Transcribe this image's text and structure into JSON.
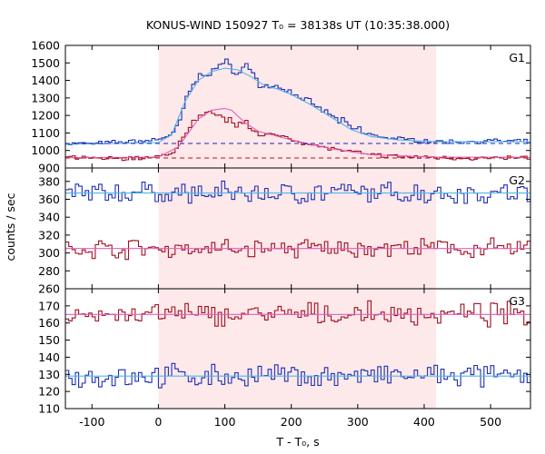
{
  "chart_data": {
    "type": "line",
    "title": "KONUS-WIND 150927 T₀ = 38138s UT (10:35:38.000)",
    "xlabel": "T - T₀, s",
    "ylabel": "counts / sec",
    "xlim": [
      -140,
      560
    ],
    "x_ticks": [
      -100,
      0,
      100,
      200,
      300,
      400,
      500
    ],
    "highlight_interval": [
      0,
      418
    ],
    "colors": {
      "raw": "#1f2fb0",
      "smooth": "#4fb8e8",
      "hard": "#a01020",
      "hard_smooth": "#e060c0",
      "bg_blue": "#2020c0",
      "bg_red": "#c01020",
      "highlight": "#fde8ea"
    },
    "panels": [
      {
        "name": "G1",
        "ylim": [
          900,
          1600
        ],
        "y_ticks": [
          900,
          1000,
          1100,
          1200,
          1300,
          1400,
          1500,
          1600
        ],
        "series": [
          {
            "color": "raw",
            "style": "step",
            "points": [
              [
                -140,
                1040
              ],
              [
                -100,
                1040
              ],
              [
                -50,
                1050
              ],
              [
                -10,
                1060
              ],
              [
                0,
                1070
              ],
              [
                10,
                1080
              ],
              [
                20,
                1100
              ],
              [
                30,
                1170
              ],
              [
                40,
                1300
              ],
              [
                50,
                1380
              ],
              [
                60,
                1420
              ],
              [
                70,
                1440
              ],
              [
                80,
                1460
              ],
              [
                90,
                1490
              ],
              [
                100,
                1500
              ],
              [
                110,
                1440
              ],
              [
                120,
                1470
              ],
              [
                130,
                1490
              ],
              [
                140,
                1440
              ],
              [
                150,
                1370
              ],
              [
                160,
                1360
              ],
              [
                170,
                1360
              ],
              [
                180,
                1370
              ],
              [
                190,
                1340
              ],
              [
                200,
                1330
              ],
              [
                215,
                1290
              ],
              [
                230,
                1260
              ],
              [
                250,
                1220
              ],
              [
                270,
                1170
              ],
              [
                290,
                1130
              ],
              [
                310,
                1100
              ],
              [
                330,
                1080
              ],
              [
                350,
                1070
              ],
              [
                380,
                1060
              ],
              [
                418,
                1050
              ],
              [
                450,
                1050
              ],
              [
                500,
                1055
              ],
              [
                560,
                1050
              ]
            ]
          },
          {
            "color": "smooth",
            "style": "line",
            "points": [
              [
                -140,
                1035
              ],
              [
                0,
                1045
              ],
              [
                20,
                1090
              ],
              [
                40,
                1280
              ],
              [
                60,
                1400
              ],
              [
                80,
                1450
              ],
              [
                100,
                1470
              ],
              [
                120,
                1460
              ],
              [
                140,
                1420
              ],
              [
                160,
                1370
              ],
              [
                180,
                1350
              ],
              [
                200,
                1320
              ],
              [
                230,
                1260
              ],
              [
                260,
                1190
              ],
              [
                290,
                1120
              ],
              [
                320,
                1080
              ],
              [
                360,
                1060
              ],
              [
                418,
                1050
              ],
              [
                560,
                1050
              ]
            ]
          },
          {
            "color": "hard",
            "style": "step",
            "points": [
              [
                -140,
                960
              ],
              [
                -100,
                955
              ],
              [
                -50,
                955
              ],
              [
                -10,
                960
              ],
              [
                0,
                965
              ],
              [
                20,
                990
              ],
              [
                30,
                1050
              ],
              [
                40,
                1100
              ],
              [
                50,
                1160
              ],
              [
                60,
                1190
              ],
              [
                70,
                1200
              ],
              [
                80,
                1210
              ],
              [
                90,
                1200
              ],
              [
                100,
                1180
              ],
              [
                110,
                1150
              ],
              [
                120,
                1160
              ],
              [
                130,
                1180
              ],
              [
                140,
                1120
              ],
              [
                150,
                1080
              ],
              [
                170,
                1090
              ],
              [
                190,
                1080
              ],
              [
                210,
                1050
              ],
              [
                230,
                1030
              ],
              [
                260,
                1010
              ],
              [
                290,
                990
              ],
              [
                320,
                975
              ],
              [
                360,
                965
              ],
              [
                418,
                960
              ],
              [
                470,
                955
              ],
              [
                560,
                960
              ]
            ]
          },
          {
            "color": "hard_smooth",
            "style": "line",
            "points": [
              [
                -140,
                958
              ],
              [
                0,
                962
              ],
              [
                30,
                1020
              ],
              [
                60,
                1180
              ],
              [
                80,
                1230
              ],
              [
                100,
                1240
              ],
              [
                110,
                1230
              ],
              [
                130,
                1160
              ],
              [
                150,
                1110
              ],
              [
                200,
                1060
              ],
              [
                260,
                1010
              ],
              [
                320,
                975
              ],
              [
                418,
                962
              ],
              [
                560,
                960
              ]
            ]
          },
          {
            "color": "bg_blue",
            "style": "dashed",
            "points": [
              [
                -140,
                1040
              ],
              [
                560,
                1040
              ]
            ]
          },
          {
            "color": "bg_red",
            "style": "dashed",
            "points": [
              [
                -140,
                957
              ],
              [
                560,
                957
              ]
            ]
          }
        ]
      },
      {
        "name": "G2",
        "ylim": [
          260,
          395
        ],
        "y_ticks": [
          260,
          280,
          300,
          320,
          340,
          360,
          380
        ],
        "series": [
          {
            "color": "raw",
            "style": "noisy",
            "mean": 367,
            "amplitude": 9
          },
          {
            "color": "smooth",
            "style": "line",
            "points": [
              [
                -140,
                367
              ],
              [
                560,
                367
              ]
            ]
          },
          {
            "color": "hard",
            "style": "noisy",
            "mean": 305,
            "amplitude": 8
          },
          {
            "color": "hard_smooth",
            "style": "line",
            "points": [
              [
                -140,
                305
              ],
              [
                560,
                305
              ]
            ]
          }
        ]
      },
      {
        "name": "G3",
        "ylim": [
          110,
          180
        ],
        "y_ticks": [
          110,
          120,
          130,
          140,
          150,
          160,
          170
        ],
        "series": [
          {
            "color": "hard",
            "style": "noisy",
            "mean": 165,
            "amplitude": 5
          },
          {
            "color": "hard_smooth",
            "style": "line",
            "points": [
              [
                -140,
                165
              ],
              [
                560,
                165
              ]
            ]
          },
          {
            "color": "raw",
            "style": "noisy",
            "mean": 129,
            "amplitude": 5
          },
          {
            "color": "smooth",
            "style": "line",
            "points": [
              [
                -140,
                129
              ],
              [
                560,
                129
              ]
            ]
          }
        ]
      }
    ]
  }
}
